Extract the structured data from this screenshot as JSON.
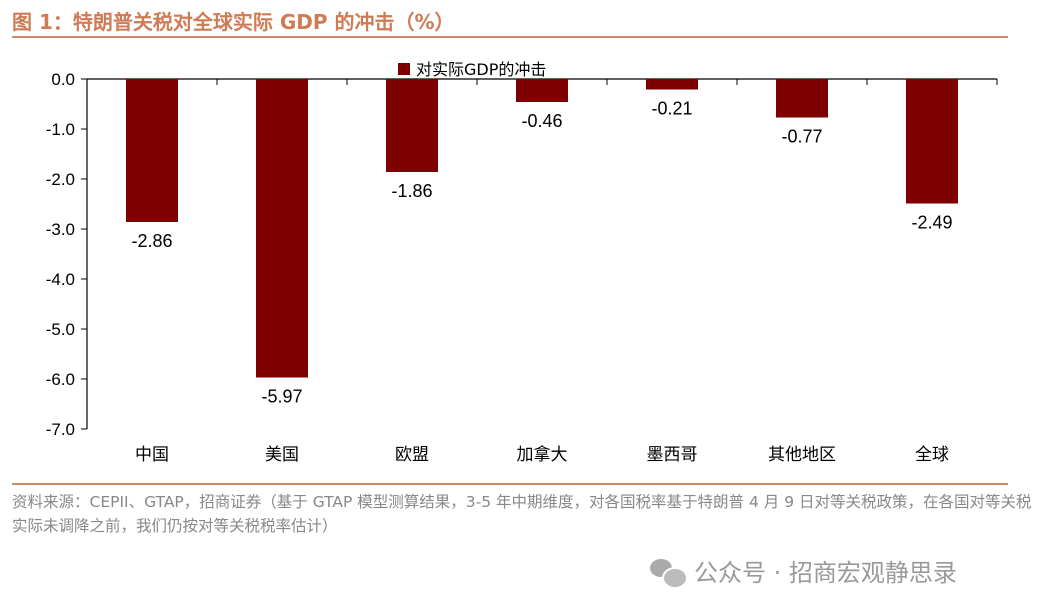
{
  "title": "图 1：特朗普关税对全球实际 GDP 的冲击（%）",
  "source": "资料来源：CEPII、GTAP，招商证券（基于 GTAP 模型测算结果，3-5 年中期维度，对各国税率基于特朗普 4 月 9 日对等关税政策，在各国对等关税实际未调降之前，我们仍按对等关税税率估计）",
  "watermark": "公众号 · 招商宏观静思录",
  "colors": {
    "bar": "#7f0000",
    "title": "#cf7b56",
    "rule": "#cf8a6a"
  },
  "chart_data": {
    "type": "bar",
    "categories": [
      "中国",
      "美国",
      "欧盟",
      "加拿大",
      "墨西哥",
      "其他地区",
      "全球"
    ],
    "series": [
      {
        "name": "对实际GDP的冲击",
        "values": [
          -2.86,
          -5.97,
          -1.86,
          -0.46,
          -0.21,
          -0.77,
          -2.49
        ]
      }
    ],
    "data_labels": [
      "-2.86",
      "-5.97",
      "-1.86",
      "-0.46",
      "-0.21",
      "-0.77",
      "-2.49"
    ],
    "ylim": [
      -7.0,
      0.0
    ],
    "yticks": [
      "0.0",
      "-1.0",
      "-2.0",
      "-3.0",
      "-4.0",
      "-5.0",
      "-6.0",
      "-7.0"
    ],
    "legend": "top",
    "grid": false
  }
}
